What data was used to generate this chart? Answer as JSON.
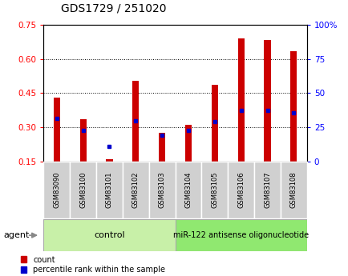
{
  "title": "GDS1729 / 251020",
  "samples": [
    "GSM83090",
    "GSM83100",
    "GSM83101",
    "GSM83102",
    "GSM83103",
    "GSM83104",
    "GSM83105",
    "GSM83106",
    "GSM83107",
    "GSM83108"
  ],
  "count_values": [
    0.43,
    0.335,
    0.16,
    0.505,
    0.275,
    0.31,
    0.485,
    0.69,
    0.685,
    0.635
  ],
  "percentile_values": [
    0.34,
    0.285,
    0.215,
    0.33,
    0.265,
    0.285,
    0.325,
    0.375,
    0.375,
    0.365
  ],
  "bar_bottom": 0.15,
  "ylim_left": [
    0.15,
    0.75
  ],
  "ylim_right": [
    0,
    100
  ],
  "yticks_left": [
    0.15,
    0.3,
    0.45,
    0.6,
    0.75
  ],
  "ytick_labels_left": [
    "0.15",
    "0.30",
    "0.45",
    "0.60",
    "0.75"
  ],
  "yticks_right": [
    0,
    25,
    50,
    75,
    100
  ],
  "ytick_labels_right": [
    "0",
    "25",
    "50",
    "75",
    "100%"
  ],
  "bar_width": 0.25,
  "bar_color": "#cc0000",
  "percentile_color": "#0000cc",
  "n_control": 5,
  "n_treatment": 5,
  "control_label": "control",
  "treatment_label": "miR-122 antisense oligonucleotide",
  "agent_label": "agent",
  "legend_count": "count",
  "legend_percentile": "percentile rank within the sample",
  "control_bg": "#c8f0a8",
  "treatment_bg": "#90e870",
  "sample_bg": "#d0d0d0",
  "fig_bg": "#ffffff"
}
